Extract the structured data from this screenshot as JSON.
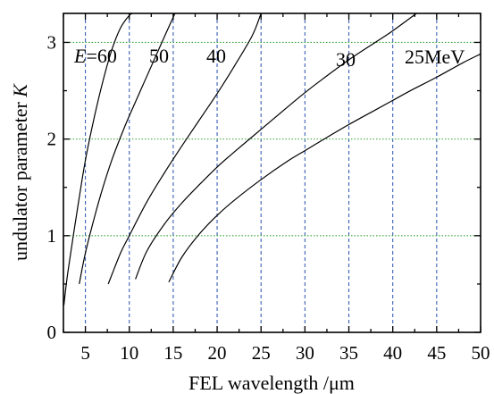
{
  "chart_data": {
    "type": "line",
    "title": "",
    "xlabel": "FEL wavelength /μm",
    "ylabel": "undulator parameter K",
    "ylabel_main": "undulator parameter ",
    "ylabel_symbol": "K",
    "xlim": [
      2.5,
      50
    ],
    "ylim": [
      0,
      3.3
    ],
    "xticks": [
      5,
      10,
      15,
      20,
      25,
      30,
      35,
      40,
      45,
      50
    ],
    "yticks": [
      0,
      1,
      2,
      3
    ],
    "grid": {
      "vertical": "dashed blue at x ticks",
      "horizontal": "dotted green at y = 1, 2, 3"
    },
    "colors": {
      "curve": "#000000",
      "vertical_grid": "#3a5fb5",
      "horizontal_grid": "#33a333"
    },
    "labels": {
      "e60_symbol": "E",
      "e60_value": "=60",
      "e50": "50",
      "e40": "40",
      "e30": "30",
      "e25": "25MeV"
    },
    "series": [
      {
        "name": "E=60",
        "energy_mev": 60,
        "x": [
          2.55,
          3.0,
          4.0,
          5.0,
          6.0,
          7.0,
          8.0,
          9.0,
          10.0,
          10.4
        ],
        "y": [
          0.28,
          0.62,
          1.22,
          1.78,
          2.22,
          2.6,
          2.92,
          3.15,
          3.28,
          3.3
        ]
      },
      {
        "name": "50",
        "energy_mev": 50,
        "x": [
          4.3,
          5.0,
          6.0,
          7.0,
          8.0,
          9.0,
          10.0,
          12.0,
          14.0,
          15.2
        ],
        "y": [
          0.5,
          0.82,
          1.18,
          1.5,
          1.78,
          2.02,
          2.24,
          2.65,
          3.06,
          3.3
        ]
      },
      {
        "name": "40",
        "energy_mev": 40,
        "x": [
          7.6,
          9.0,
          10.0,
          12.0,
          14.0,
          16.0,
          18.0,
          20.0,
          22.0,
          24.0,
          25.0
        ],
        "y": [
          0.5,
          0.82,
          1.0,
          1.35,
          1.65,
          1.93,
          2.2,
          2.47,
          2.76,
          3.07,
          3.3
        ]
      },
      {
        "name": "30",
        "energy_mev": 30,
        "x": [
          10.7,
          12.0,
          14.0,
          16.0,
          18.0,
          20.0,
          22.0,
          25.0,
          28.0,
          30.0,
          32.0,
          35.0,
          38.0,
          40.0,
          42.7
        ],
        "y": [
          0.55,
          0.84,
          1.12,
          1.34,
          1.53,
          1.71,
          1.87,
          2.1,
          2.33,
          2.48,
          2.62,
          2.82,
          3.0,
          3.12,
          3.3
        ]
      },
      {
        "name": "25MeV",
        "energy_mev": 25,
        "x": [
          14.5,
          16.0,
          18.0,
          20.0,
          22.0,
          25.0,
          28.0,
          30.0,
          32.0,
          35.0,
          38.0,
          40.0,
          42.0,
          45.0,
          48.0,
          50.0
        ],
        "y": [
          0.52,
          0.78,
          1.02,
          1.21,
          1.37,
          1.58,
          1.77,
          1.88,
          1.99,
          2.15,
          2.3,
          2.4,
          2.5,
          2.64,
          2.79,
          2.88
        ]
      }
    ]
  }
}
